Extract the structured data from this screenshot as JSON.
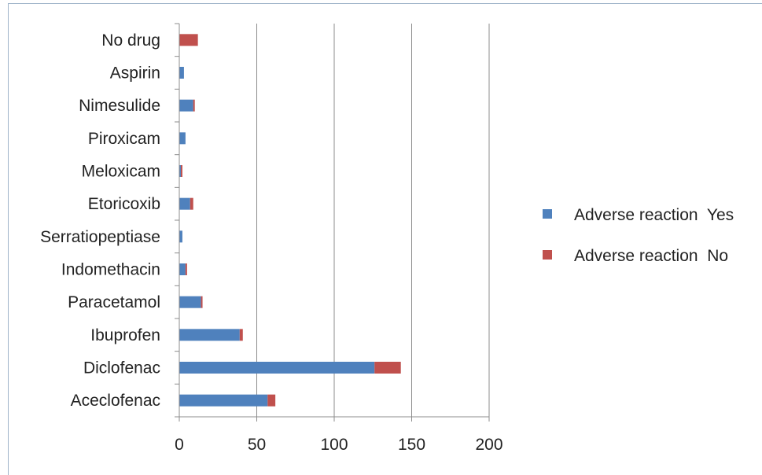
{
  "chart_data": {
    "type": "bar",
    "orientation": "horizontal",
    "stacked": true,
    "categories": [
      "Aceclofenac",
      "Diclofenac",
      "Ibuprofen",
      "Paracetamol",
      "Indomethacin",
      "Serratiopeptiase",
      "Etoricoxib",
      "Meloxicam",
      "Piroxicam",
      "Nimesulide",
      "Aspirin",
      "No drug"
    ],
    "series": [
      {
        "name": "Adverse reaction  Yes",
        "color": "#4f81bd",
        "values": [
          57,
          126,
          39,
          14,
          4,
          2,
          7,
          1,
          4,
          9,
          3,
          0
        ]
      },
      {
        "name": "Adverse reaction  No",
        "color": "#c0504d",
        "values": [
          5,
          17,
          2,
          1,
          1,
          0,
          2,
          1,
          0,
          1,
          0,
          12
        ]
      }
    ],
    "xlim": [
      0,
      200
    ],
    "xticks": [
      "0",
      "50",
      "100",
      "150",
      "200"
    ],
    "grid": "vertical",
    "legend": "right"
  }
}
